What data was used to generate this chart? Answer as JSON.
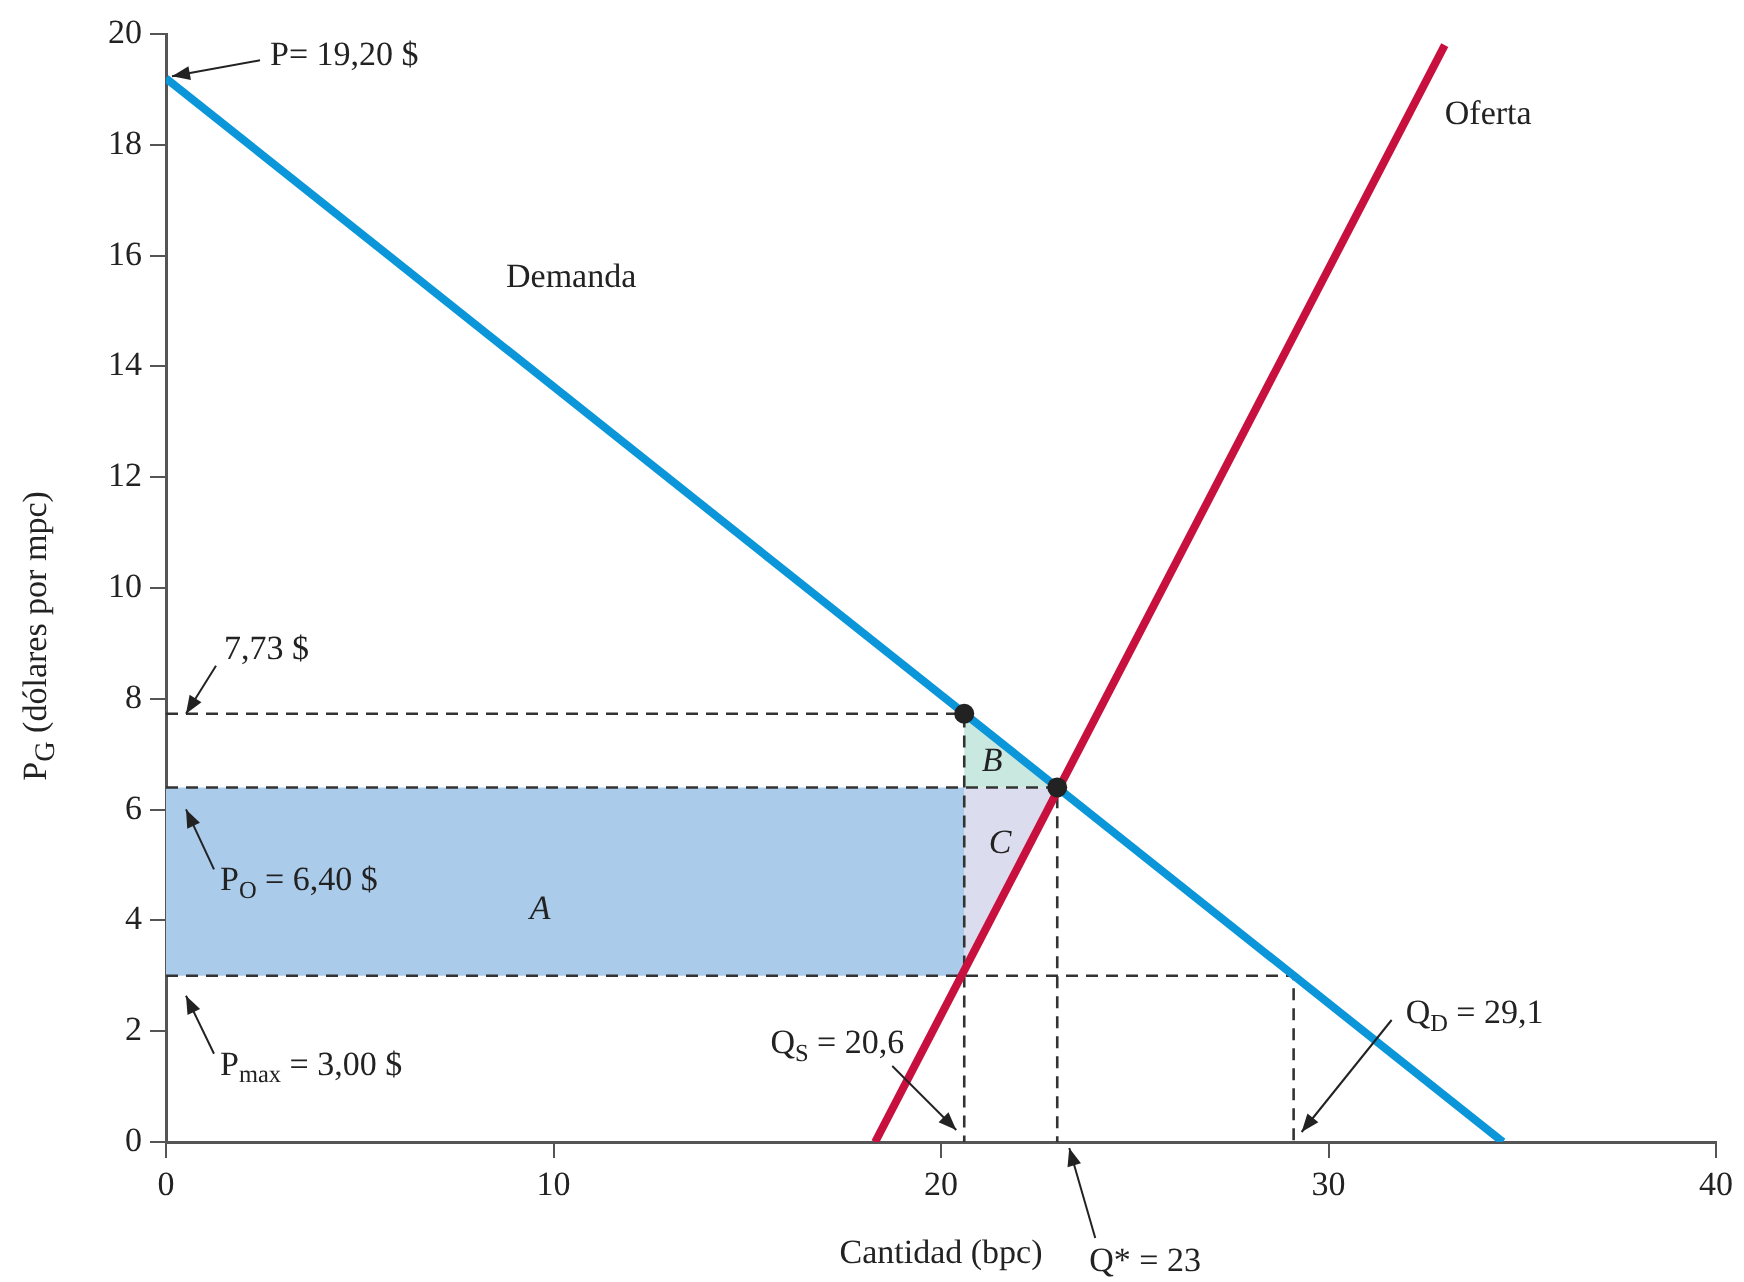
{
  "chart_data": {
    "type": "line",
    "xlabel": "Cantidad (bpc)",
    "ylabel": "P$_{G}$ (dólares por mpc)",
    "xlim": [
      0,
      40
    ],
    "xticks": [
      0,
      10,
      20,
      30,
      40
    ],
    "ylim": [
      0,
      20
    ],
    "yticks": [
      0,
      2,
      4,
      6,
      8,
      10,
      12,
      14,
      16,
      18,
      20
    ],
    "grid": false,
    "legend": false,
    "series": [
      {
        "name": "Demanda",
        "color": "#0a96d8",
        "x": [
          0,
          34.5
        ],
        "values": [
          19.2,
          0
        ]
      },
      {
        "name": "Oferta",
        "color": "#c8103e",
        "x": [
          18.3,
          33
        ],
        "values": [
          0,
          19.8
        ]
      },
      {
        "type": "area",
        "color": "#aacbea",
        "x": [
          0,
          20.6,
          20.6,
          0
        ],
        "values": [
          6.4,
          6.4,
          3,
          3
        ]
      },
      {
        "type": "area",
        "color": "#c9e8e0",
        "x": [
          20.6,
          23,
          20.6
        ],
        "values": [
          7.73,
          6.4,
          6.4
        ]
      },
      {
        "type": "area",
        "color": "#dcdcef",
        "x": [
          20.6,
          23,
          20.6
        ],
        "values": [
          6.4,
          6.4,
          3
        ]
      },
      {
        "color": "#333333",
        "line_style": "dashed",
        "x": [
          0,
          20.6,
          20.6
        ],
        "values": [
          7.73,
          7.73,
          0
        ]
      },
      {
        "color": "#333333",
        "line_style": "dashed",
        "x": [
          0,
          23,
          23
        ],
        "values": [
          6.4,
          6.4,
          0
        ]
      },
      {
        "color": "#333333",
        "line_style": "dashed",
        "x": [
          0,
          29.1,
          29.1
        ],
        "values": [
          3,
          3,
          0
        ]
      },
      {
        "type": "scatter",
        "color": "#222222",
        "marker": "circle",
        "x": [
          20.6,
          23
        ],
        "values": [
          7.73,
          6.4
        ]
      }
    ],
    "annotations": [
      {
        "text": "P= 19,20 $",
        "x": 0,
        "y": 19.2
      },
      {
        "text": "7,73 $",
        "x": 0,
        "y": 7.73
      },
      {
        "text": "P$_{O}$ = 6,40 $",
        "x": 0,
        "y": 6.4
      },
      {
        "text": "P$_{max}$ = 3,00 $",
        "x": 0,
        "y": 3
      },
      {
        "text": "Q$_{S}$ = 20,6",
        "x": 20.6,
        "y": 0
      },
      {
        "text": "Q$_{D}$ = 29,1",
        "x": 29.1,
        "y": 0
      },
      {
        "text": "Q* = 23",
        "x": 23,
        "y": 0
      },
      "A",
      "B",
      "C"
    ]
  }
}
